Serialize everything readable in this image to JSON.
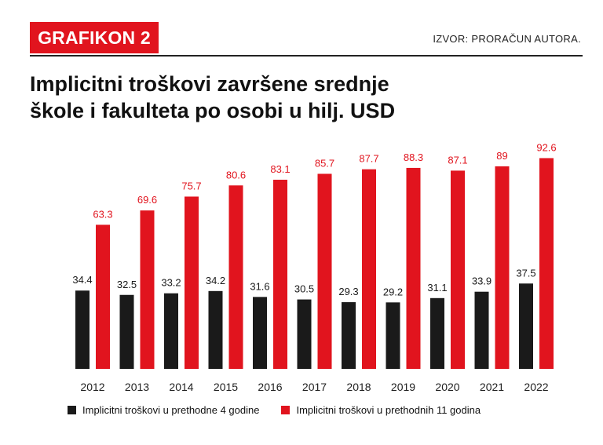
{
  "header": {
    "badge": "GRAFIKON 2",
    "source": "IZVOR: PRORAČUN AUTORA."
  },
  "title": {
    "line1": "Implicitni troškovi završene srednje",
    "line2": "škole i fakulteta po osobi u hilj. USD"
  },
  "colors": {
    "accent": "#e1141e",
    "dark": "#1a1a1a"
  },
  "chart_data": {
    "type": "bar",
    "categories": [
      "2012",
      "2013",
      "2014",
      "2015",
      "2016",
      "2017",
      "2018",
      "2019",
      "2020",
      "2021",
      "2022"
    ],
    "series": [
      {
        "name": "Implicitni troškovi u prethodne 4 godine",
        "color": "#1a1a1a",
        "values": [
          34.4,
          32.5,
          33.2,
          34.2,
          31.6,
          30.5,
          29.3,
          29.2,
          31.1,
          33.9,
          37.5
        ]
      },
      {
        "name": "Implicitni troškovi u prethodnih 11 godina",
        "color": "#e1141e",
        "values": [
          63.3,
          69.6,
          75.7,
          80.6,
          83.1,
          85.7,
          87.7,
          88.3,
          87.1,
          89,
          92.6
        ]
      }
    ],
    "ylim": [
      0,
      100
    ],
    "grid": false,
    "legend_position": "bottom"
  }
}
